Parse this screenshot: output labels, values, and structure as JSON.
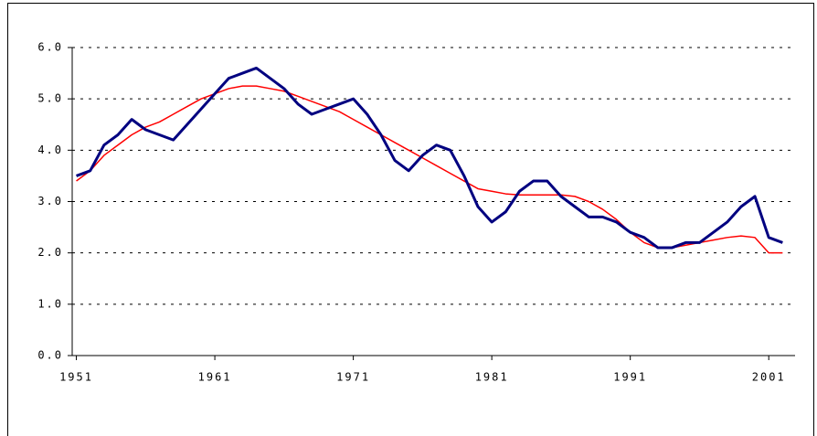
{
  "chart_data": {
    "type": "line",
    "x": [
      1951,
      1952,
      1953,
      1954,
      1955,
      1956,
      1957,
      1958,
      1959,
      1960,
      1961,
      1962,
      1963,
      1964,
      1965,
      1966,
      1967,
      1968,
      1969,
      1970,
      1971,
      1972,
      1973,
      1974,
      1975,
      1976,
      1977,
      1978,
      1979,
      1980,
      1981,
      1982,
      1983,
      1984,
      1985,
      1986,
      1987,
      1988,
      1989,
      1990,
      1991,
      1992,
      1993,
      1994,
      1995,
      1996,
      1997,
      1998,
      1999,
      2000,
      2001,
      2002
    ],
    "series": [
      {
        "color": "#000080",
        "values": [
          3.5,
          3.6,
          4.1,
          4.3,
          4.6,
          4.4,
          4.3,
          4.2,
          4.5,
          4.8,
          5.1,
          5.4,
          5.5,
          5.6,
          5.4,
          5.2,
          4.9,
          4.7,
          4.8,
          4.9,
          5.0,
          4.7,
          4.3,
          3.8,
          3.6,
          3.9,
          4.1,
          4.0,
          3.5,
          2.9,
          2.6,
          2.8,
          3.2,
          3.4,
          3.4,
          3.1,
          2.9,
          2.7,
          2.7,
          2.6,
          2.4,
          2.3,
          2.1,
          2.1,
          2.2,
          2.2,
          2.4,
          2.6,
          2.9,
          3.1,
          2.3,
          2.2
        ]
      },
      {
        "color": "#ff0000",
        "values": [
          3.4,
          3.6,
          3.9,
          4.1,
          4.3,
          4.45,
          4.55,
          4.7,
          4.85,
          5.0,
          5.1,
          5.2,
          5.25,
          5.25,
          5.2,
          5.15,
          5.05,
          4.95,
          4.85,
          4.75,
          4.6,
          4.45,
          4.3,
          4.15,
          4.0,
          3.85,
          3.7,
          3.55,
          3.4,
          3.25,
          3.2,
          3.15,
          3.13,
          3.13,
          3.13,
          3.13,
          3.1,
          3.0,
          2.85,
          2.65,
          2.4,
          2.2,
          2.1,
          2.1,
          2.15,
          2.2,
          2.25,
          2.3,
          2.33,
          2.3,
          2.0,
          2.0
        ]
      }
    ],
    "xlim": [
      1950.7,
      2002.9
    ],
    "xticks": [
      1951,
      1961,
      1971,
      1981,
      1991,
      2001
    ],
    "ylim": [
      0,
      6
    ],
    "yticks": [
      {
        "value": 0,
        "label": "0.0"
      },
      {
        "value": 1,
        "label": "1.0"
      },
      {
        "value": 2,
        "label": "2.0"
      },
      {
        "value": 3,
        "label": "3.0"
      },
      {
        "value": 4,
        "label": "4.0"
      },
      {
        "value": 5,
        "label": "5.0"
      },
      {
        "value": 6,
        "label": "6.0"
      }
    ],
    "grid": true
  }
}
